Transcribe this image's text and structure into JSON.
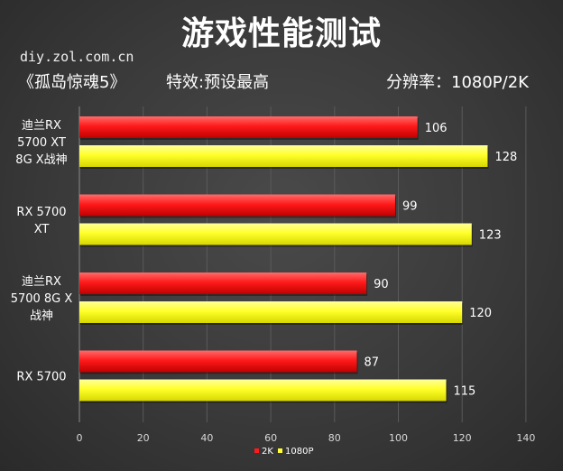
{
  "header": {
    "title": "游戏性能测试",
    "site": "diy.zol.com.cn",
    "game": "《孤岛惊魂5》",
    "effect": "特效:预设最高",
    "resolution": "分辨率：1080P/2K"
  },
  "colors": {
    "2K": "#ff1a1a",
    "1080P": "#ffff33"
  },
  "chart_data": {
    "type": "bar",
    "orientation": "horizontal",
    "categories": [
      [
        "迪兰RX",
        "5700 XT",
        "8G X战神"
      ],
      [
        "RX 5700",
        "XT"
      ],
      [
        "迪兰RX",
        "5700 8G X",
        "战神"
      ],
      [
        "RX 5700"
      ]
    ],
    "series": [
      {
        "name": "2K",
        "values": [
          106,
          99,
          90,
          87
        ]
      },
      {
        "name": "1080P",
        "values": [
          128,
          123,
          120,
          115
        ]
      }
    ],
    "xlim": [
      0,
      140
    ],
    "xticks": [
      0,
      20,
      40,
      60,
      80,
      100,
      120,
      140
    ],
    "legend": "bottom",
    "grid": "vertical"
  }
}
